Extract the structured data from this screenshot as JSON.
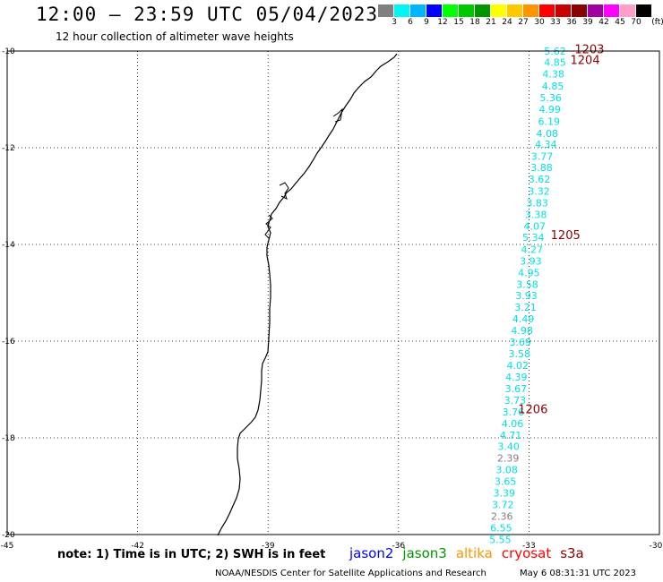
{
  "header": {
    "title": "12:00 – 23:59 UTC 05/04/2023",
    "subtitle": "12 hour collection of altimeter wave heights"
  },
  "colorbar": {
    "unit_label": "(ft)",
    "colors": [
      "#808080",
      "#00f5f5",
      "#00b4ff",
      "#0000ff",
      "#00ff00",
      "#00c800",
      "#009600",
      "#ffff00",
      "#ffc800",
      "#ff9600",
      "#ff0000",
      "#c80000",
      "#8b0000",
      "#a000a0",
      "#ff00ff",
      "#ff9ec8",
      "#000000"
    ],
    "labels": [
      "3",
      "6",
      "9",
      "12",
      "15",
      "18",
      "21",
      "24",
      "27",
      "30",
      "33",
      "36",
      "39",
      "42",
      "45",
      "70"
    ]
  },
  "map": {
    "lon_range": [
      -45,
      -30
    ],
    "lat_range": [
      -20,
      -10
    ],
    "lon_ticks": [
      "-45",
      "-42",
      "-39",
      "-36",
      "-33",
      "-30"
    ],
    "lat_ticks": [
      "-10",
      "-12",
      "-14",
      "-16",
      "-18",
      "-20"
    ],
    "grid_lons": [
      -42,
      -39,
      -36,
      -33
    ],
    "grid_lats": [
      -12,
      -14,
      -16,
      -18
    ],
    "measurements": [
      {
        "lon": -32.4,
        "lat": -10.0,
        "value": "5.62",
        "color": "#00e0e0"
      },
      {
        "lon": -32.4,
        "lat": -10.23,
        "value": "4.85",
        "color": "#00e0e0"
      },
      {
        "lon": -32.44,
        "lat": -10.47,
        "value": "4.38",
        "color": "#00e0e0"
      },
      {
        "lon": -32.45,
        "lat": -10.72,
        "value": "4.85",
        "color": "#00e0e0"
      },
      {
        "lon": -32.5,
        "lat": -10.96,
        "value": "5.36",
        "color": "#00e0e0"
      },
      {
        "lon": -32.52,
        "lat": -11.2,
        "value": "4.99",
        "color": "#00e0e0"
      },
      {
        "lon": -32.54,
        "lat": -11.45,
        "value": "6.19",
        "color": "#00e0e0"
      },
      {
        "lon": -32.58,
        "lat": -11.7,
        "value": "4.08",
        "color": "#00e0e0"
      },
      {
        "lon": -32.61,
        "lat": -11.93,
        "value": "4.34",
        "color": "#00e0e0"
      },
      {
        "lon": -32.7,
        "lat": -12.18,
        "value": "3.77",
        "color": "#00e0e0"
      },
      {
        "lon": -32.71,
        "lat": -12.41,
        "value": "3.88",
        "color": "#00e0e0"
      },
      {
        "lon": -32.76,
        "lat": -12.65,
        "value": "3.62",
        "color": "#00e0e0"
      },
      {
        "lon": -32.77,
        "lat": -12.9,
        "value": "3.32",
        "color": "#00e0e0"
      },
      {
        "lon": -32.81,
        "lat": -13.14,
        "value": "3.83",
        "color": "#00e0e0"
      },
      {
        "lon": -32.84,
        "lat": -13.38,
        "value": "3.38",
        "color": "#00e0e0"
      },
      {
        "lon": -32.87,
        "lat": -13.62,
        "value": "4.07",
        "color": "#00e0e0"
      },
      {
        "lon": -32.9,
        "lat": -13.85,
        "value": "5.34",
        "color": "#00e0e0"
      },
      {
        "lon": -32.93,
        "lat": -14.1,
        "value": "4.27",
        "color": "#00e0e0"
      },
      {
        "lon": -32.96,
        "lat": -14.34,
        "value": "3.93",
        "color": "#00e0e0"
      },
      {
        "lon": -33.0,
        "lat": -14.58,
        "value": "4.95",
        "color": "#00e0e0"
      },
      {
        "lon": -33.04,
        "lat": -14.82,
        "value": "3.58",
        "color": "#00e0e0"
      },
      {
        "lon": -33.06,
        "lat": -15.06,
        "value": "3.93",
        "color": "#00e0e0"
      },
      {
        "lon": -33.08,
        "lat": -15.3,
        "value": "3.21",
        "color": "#00e0e0"
      },
      {
        "lon": -33.13,
        "lat": -15.54,
        "value": "4.49",
        "color": "#00e0e0"
      },
      {
        "lon": -33.16,
        "lat": -15.78,
        "value": "4.98",
        "color": "#00e0e0"
      },
      {
        "lon": -33.2,
        "lat": -16.02,
        "value": "3.69",
        "color": "#00e0e0"
      },
      {
        "lon": -33.22,
        "lat": -16.26,
        "value": "3.58",
        "color": "#00e0e0"
      },
      {
        "lon": -33.26,
        "lat": -16.5,
        "value": "4.02",
        "color": "#00e0e0"
      },
      {
        "lon": -33.29,
        "lat": -16.74,
        "value": "4.39",
        "color": "#00e0e0"
      },
      {
        "lon": -33.3,
        "lat": -16.98,
        "value": "3.67",
        "color": "#00e0e0"
      },
      {
        "lon": -33.32,
        "lat": -17.22,
        "value": "3.73",
        "color": "#00e0e0"
      },
      {
        "lon": -33.36,
        "lat": -17.46,
        "value": "3.76",
        "color": "#00e0e0"
      },
      {
        "lon": -33.38,
        "lat": -17.7,
        "value": "4.06",
        "color": "#00e0e0"
      },
      {
        "lon": -33.42,
        "lat": -17.94,
        "value": "4.71",
        "color": "#00e0e0"
      },
      {
        "lon": -33.47,
        "lat": -18.18,
        "value": "3.40",
        "color": "#00e0e0"
      },
      {
        "lon": -33.48,
        "lat": -18.42,
        "value": "2.39",
        "color": "#808080"
      },
      {
        "lon": -33.51,
        "lat": -18.66,
        "value": "3.08",
        "color": "#00e0e0"
      },
      {
        "lon": -33.54,
        "lat": -18.9,
        "value": "3.65",
        "color": "#00e0e0"
      },
      {
        "lon": -33.57,
        "lat": -19.14,
        "value": "3.39",
        "color": "#00e0e0"
      },
      {
        "lon": -33.6,
        "lat": -19.38,
        "value": "3.72",
        "color": "#00e0e0"
      },
      {
        "lon": -33.62,
        "lat": -19.62,
        "value": "2.36",
        "color": "#808080"
      },
      {
        "lon": -33.64,
        "lat": -19.86,
        "value": "6.55",
        "color": "#00e0e0"
      },
      {
        "lon": -33.66,
        "lat": -20.1,
        "value": "5.55",
        "color": "#00e0e0"
      }
    ],
    "time_labels": [
      {
        "lon": -31.95,
        "lat": -9.95,
        "text": "1203"
      },
      {
        "lon": -32.05,
        "lat": -10.18,
        "text": "1204"
      },
      {
        "lon": -32.5,
        "lat": -13.8,
        "text": "1205"
      },
      {
        "lon": -33.25,
        "lat": -17.4,
        "text": "1206"
      }
    ],
    "time_label_color": "#8b0000"
  },
  "note": "note: 1) Time is in UTC; 2) SWH is in feet",
  "legend": [
    {
      "name": "jason2",
      "color": "#0000ff"
    },
    {
      "name": "jason3",
      "color": "#009600"
    },
    {
      "name": "altika",
      "color": "#ff9600"
    },
    {
      "name": "cryosat",
      "color": "#ff0000"
    },
    {
      "name": "s3a",
      "color": "#8b0000"
    }
  ],
  "footer": {
    "credit": "NOAA/NESDIS Center for Satellite Applications and Research",
    "generated": "May  6 08:31:31 UTC 2023"
  }
}
